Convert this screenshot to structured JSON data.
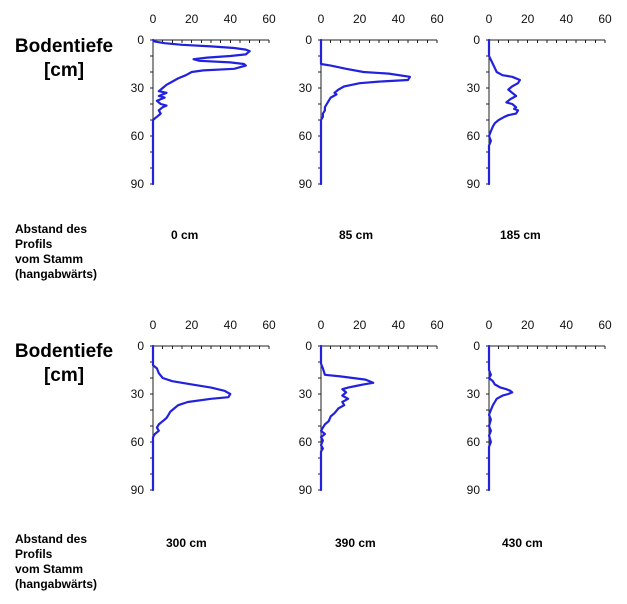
{
  "y_label_lines": [
    "Bodentiefe",
    "[cm]"
  ],
  "caption_lines": [
    "Abstand des",
    "Profils",
    "vom Stamm",
    "(hangabwärts)"
  ],
  "chart_data": {
    "type": "line",
    "orientation": "vertical-profile",
    "line_color": "#2222dd",
    "x_ticks": [
      0,
      20,
      40,
      60
    ],
    "y_ticks": [
      0,
      30,
      60,
      90
    ],
    "xlim": [
      0,
      60
    ],
    "ylim": [
      0,
      90
    ],
    "y_inverted": true,
    "x_axis_position": "top",
    "panels": [
      {
        "distance": "0 cm",
        "values": [
          [
            0,
            0
          ],
          [
            1,
            1
          ],
          [
            6,
            2
          ],
          [
            15,
            3
          ],
          [
            30,
            4
          ],
          [
            42,
            5
          ],
          [
            48,
            6
          ],
          [
            50,
            7
          ],
          [
            48,
            9
          ],
          [
            40,
            10
          ],
          [
            28,
            11
          ],
          [
            21,
            12
          ],
          [
            24,
            13
          ],
          [
            40,
            14
          ],
          [
            47,
            15
          ],
          [
            48,
            16
          ],
          [
            42,
            18
          ],
          [
            26,
            19
          ],
          [
            20,
            20
          ],
          [
            17,
            22
          ],
          [
            13,
            24
          ],
          [
            10,
            26
          ],
          [
            7,
            28
          ],
          [
            5,
            30
          ],
          [
            3,
            32
          ],
          [
            7,
            33
          ],
          [
            3,
            35
          ],
          [
            6,
            36
          ],
          [
            2,
            38
          ],
          [
            4,
            40
          ],
          [
            7,
            41
          ],
          [
            5,
            42
          ],
          [
            3,
            44
          ],
          [
            4,
            46
          ],
          [
            2,
            48
          ],
          [
            1,
            49
          ],
          [
            0,
            50
          ],
          [
            0,
            90
          ]
        ]
      },
      {
        "distance": "85 cm",
        "values": [
          [
            0,
            0
          ],
          [
            0,
            14
          ],
          [
            0,
            15
          ],
          [
            5,
            16
          ],
          [
            13,
            18
          ],
          [
            22,
            20
          ],
          [
            35,
            21
          ],
          [
            46,
            23
          ],
          [
            45,
            25
          ],
          [
            30,
            26
          ],
          [
            20,
            27
          ],
          [
            12,
            29
          ],
          [
            9,
            31
          ],
          [
            7,
            33
          ],
          [
            8,
            34
          ],
          [
            5,
            36
          ],
          [
            4,
            38
          ],
          [
            3,
            40
          ],
          [
            2,
            42
          ],
          [
            2,
            44
          ],
          [
            1,
            46
          ],
          [
            1,
            48
          ],
          [
            0,
            50
          ],
          [
            0,
            90
          ]
        ]
      },
      {
        "distance": "185 cm",
        "values": [
          [
            0,
            0
          ],
          [
            0,
            10
          ],
          [
            2,
            15
          ],
          [
            4,
            20
          ],
          [
            7,
            22
          ],
          [
            12,
            23
          ],
          [
            16,
            25
          ],
          [
            15,
            27
          ],
          [
            12,
            29
          ],
          [
            10,
            31
          ],
          [
            12,
            33
          ],
          [
            14,
            35
          ],
          [
            11,
            37
          ],
          [
            9,
            39
          ],
          [
            12,
            40
          ],
          [
            14,
            42
          ],
          [
            13,
            43
          ],
          [
            15,
            44
          ],
          [
            14,
            46
          ],
          [
            10,
            47
          ],
          [
            8,
            48
          ],
          [
            5,
            50
          ],
          [
            3,
            52
          ],
          [
            2,
            54
          ],
          [
            1,
            57
          ],
          [
            0,
            60
          ],
          [
            1,
            63
          ],
          [
            0,
            66
          ],
          [
            0,
            90
          ]
        ]
      },
      {
        "distance": "300 cm",
        "values": [
          [
            0,
            0
          ],
          [
            0,
            12
          ],
          [
            2,
            14
          ],
          [
            3,
            17
          ],
          [
            5,
            20
          ],
          [
            10,
            22
          ],
          [
            20,
            24
          ],
          [
            30,
            26
          ],
          [
            37,
            28
          ],
          [
            40,
            30
          ],
          [
            39,
            32
          ],
          [
            30,
            33
          ],
          [
            18,
            35
          ],
          [
            13,
            37
          ],
          [
            11,
            39
          ],
          [
            9,
            41
          ],
          [
            8,
            43
          ],
          [
            7,
            45
          ],
          [
            5,
            47
          ],
          [
            3,
            49
          ],
          [
            2,
            51
          ],
          [
            3,
            53
          ],
          [
            1,
            55
          ],
          [
            0,
            57
          ],
          [
            0,
            90
          ]
        ]
      },
      {
        "distance": "390 cm",
        "values": [
          [
            0,
            0
          ],
          [
            0,
            11
          ],
          [
            1,
            14
          ],
          [
            2,
            18
          ],
          [
            10,
            19
          ],
          [
            23,
            21
          ],
          [
            27,
            23
          ],
          [
            22,
            24
          ],
          [
            18,
            25
          ],
          [
            14,
            26
          ],
          [
            11,
            27
          ],
          [
            13,
            29
          ],
          [
            11,
            31
          ],
          [
            14,
            33
          ],
          [
            11,
            35
          ],
          [
            12,
            37
          ],
          [
            9,
            39
          ],
          [
            7,
            42
          ],
          [
            5,
            44
          ],
          [
            4,
            47
          ],
          [
            2,
            49
          ],
          [
            1,
            51
          ],
          [
            0,
            53
          ],
          [
            2,
            55
          ],
          [
            0,
            57
          ],
          [
            1,
            59
          ],
          [
            0,
            62
          ],
          [
            1,
            64
          ],
          [
            0,
            66
          ],
          [
            0,
            90
          ]
        ]
      },
      {
        "distance": "430 cm",
        "values": [
          [
            0,
            0
          ],
          [
            0,
            15
          ],
          [
            1,
            18
          ],
          [
            0,
            20
          ],
          [
            2,
            22
          ],
          [
            3,
            24
          ],
          [
            6,
            26
          ],
          [
            9,
            27
          ],
          [
            11,
            28
          ],
          [
            12,
            29
          ],
          [
            10,
            30
          ],
          [
            7,
            31
          ],
          [
            4,
            33
          ],
          [
            3,
            35
          ],
          [
            2,
            37
          ],
          [
            1,
            40
          ],
          [
            0,
            43
          ],
          [
            1,
            46
          ],
          [
            0,
            50
          ],
          [
            1,
            53
          ],
          [
            0,
            56
          ],
          [
            1,
            60
          ],
          [
            0,
            63
          ],
          [
            0,
            90
          ]
        ]
      }
    ]
  }
}
